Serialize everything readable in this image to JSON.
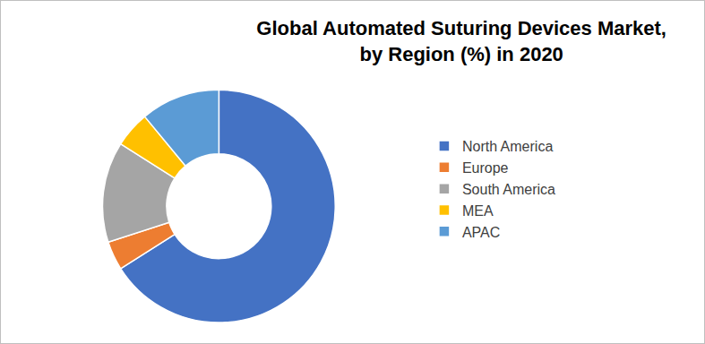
{
  "chart_data": {
    "type": "pie",
    "title": "Global Automated Suturing Devices Market, by Region (%) in 2020",
    "categories": [
      "North America",
      "Europe",
      "South America",
      "MEA",
      "APAC"
    ],
    "values": [
      66,
      4,
      14,
      5,
      11
    ],
    "colors": [
      "#4472c4",
      "#ed7d31",
      "#a5a5a5",
      "#ffc000",
      "#5b9bd5"
    ],
    "legend": "right",
    "data_labels": false
  }
}
